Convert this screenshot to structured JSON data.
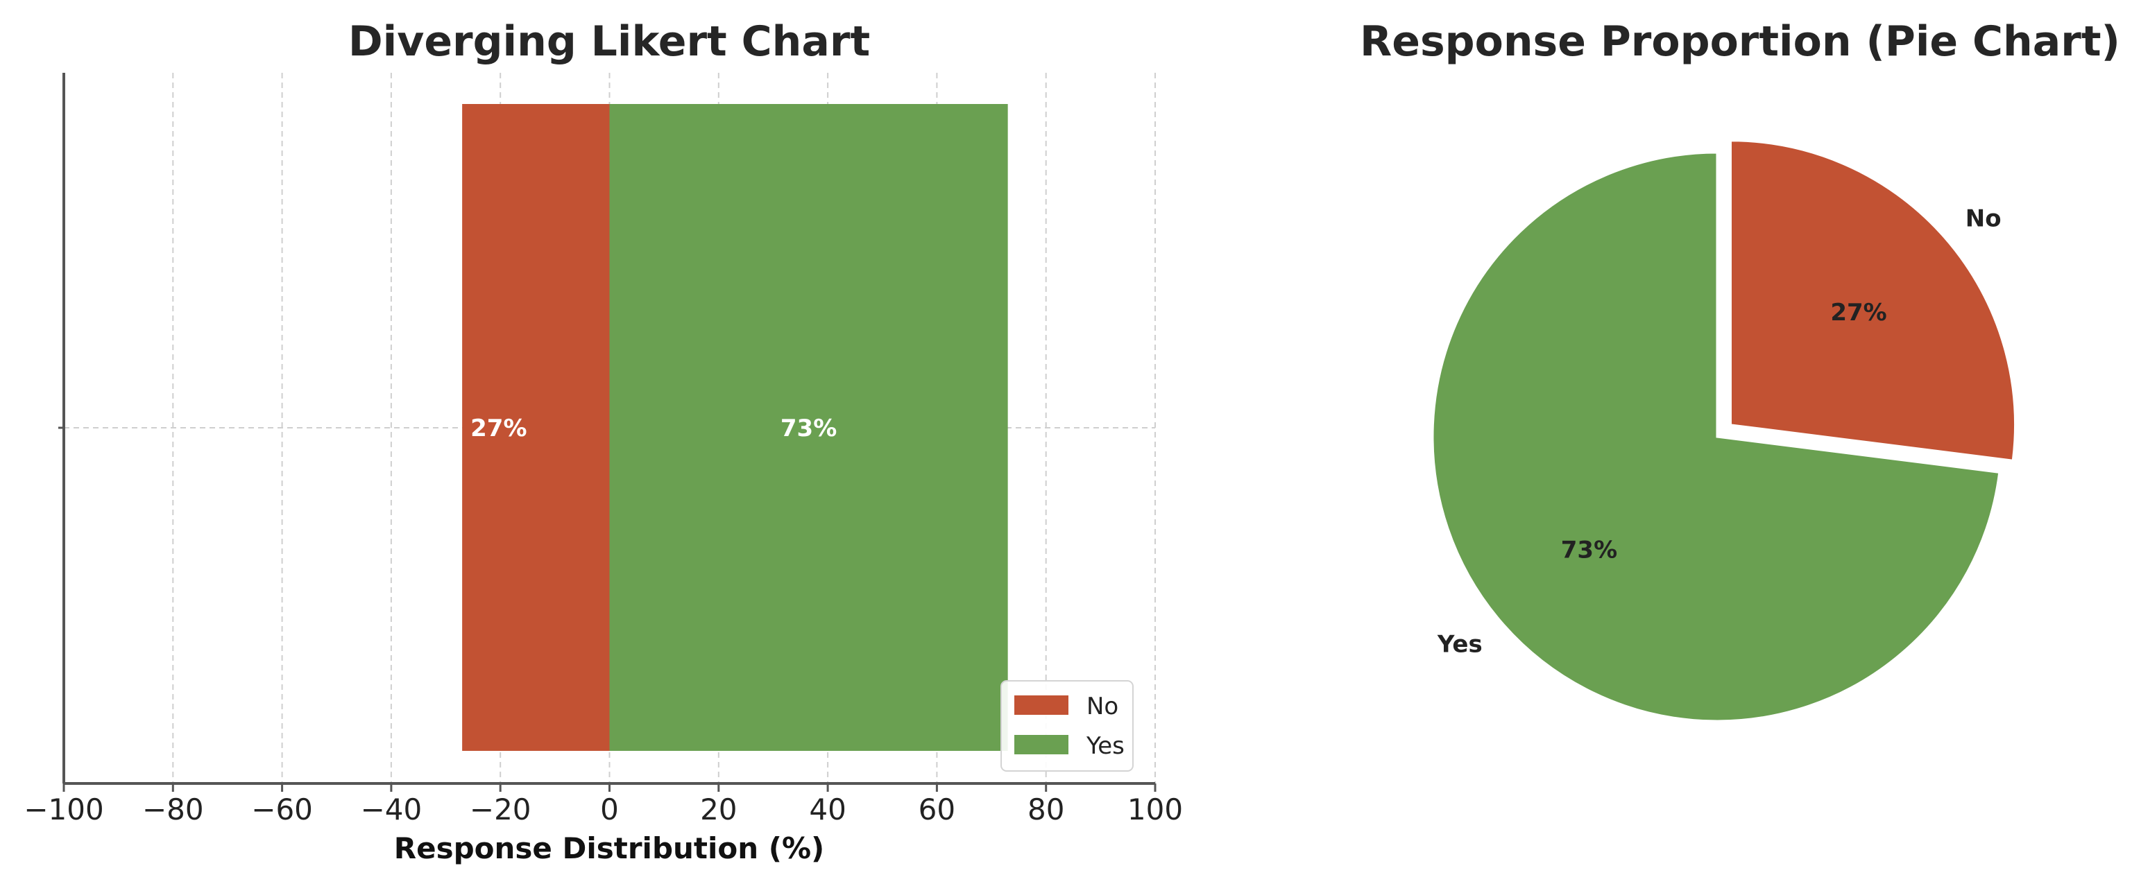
{
  "colors": {
    "no": "#c25233",
    "yes": "#6aa051"
  },
  "chart_data": [
    {
      "type": "bar",
      "orientation": "horizontal",
      "stacking": "diverging",
      "title": "Diverging Likert Chart",
      "xlabel": "Response Distribution (%)",
      "ylabel": "",
      "xlim": [
        -100,
        100
      ],
      "xticks": [
        -100,
        -80,
        -60,
        -40,
        -20,
        0,
        20,
        40,
        60,
        80,
        100
      ],
      "xtick_labels": [
        "−100",
        "−80",
        "−60",
        "−40",
        "−20",
        "0",
        "20",
        "40",
        "60",
        "80",
        "100"
      ],
      "grid": true,
      "legend_position": "lower-right",
      "series": [
        {
          "name": "No",
          "value": -27,
          "label": "27%"
        },
        {
          "name": "Yes",
          "value": 73,
          "label": "73%"
        }
      ]
    },
    {
      "type": "pie",
      "title": "Response Proportion (Pie Chart)",
      "slices": [
        {
          "name": "No",
          "value": 27,
          "label": "27%",
          "exploded": true
        },
        {
          "name": "Yes",
          "value": 73,
          "label": "73%",
          "exploded": false
        }
      ]
    }
  ]
}
